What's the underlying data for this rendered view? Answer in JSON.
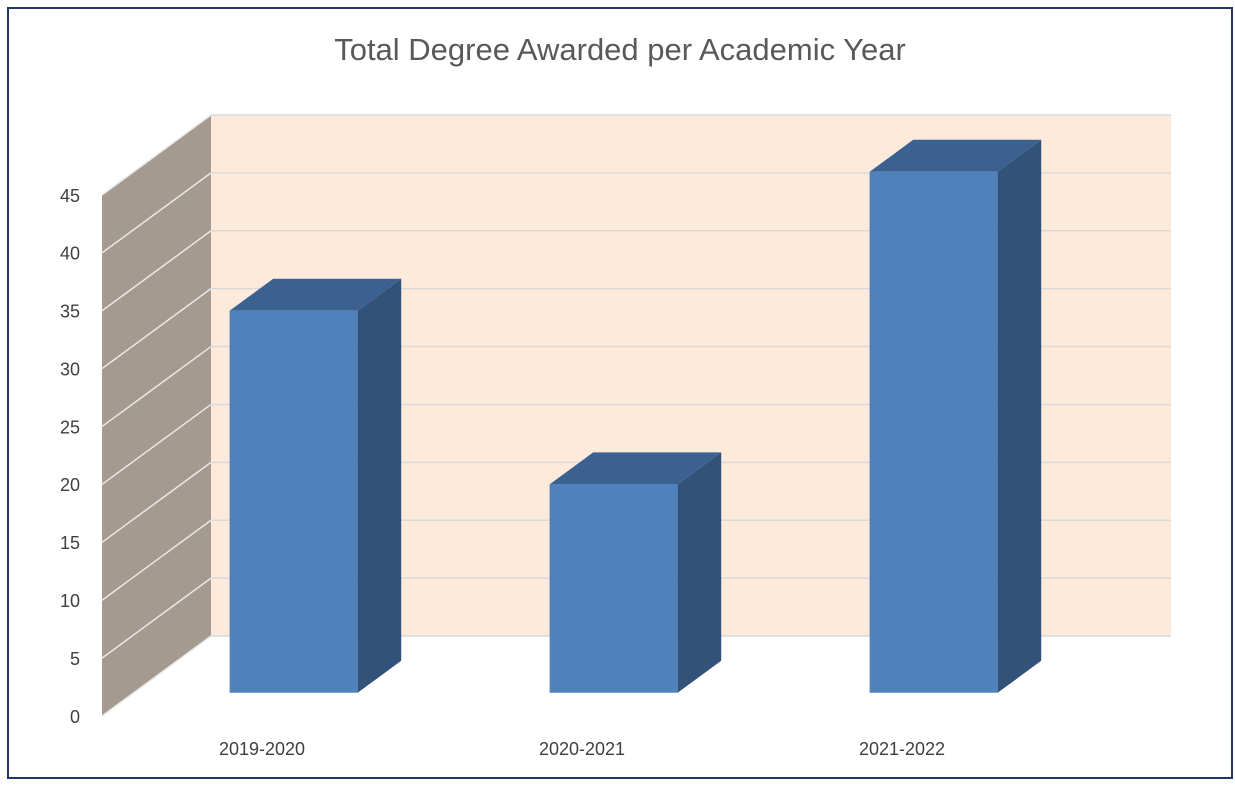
{
  "chart_data": {
    "type": "bar3d",
    "title": "Total Degree Awarded per Academic Year",
    "categories": [
      "2019-2020",
      "2020-2021",
      "2021-2022"
    ],
    "values": [
      33,
      18,
      45
    ],
    "color": "#4f81bd",
    "ylim": [
      0,
      45
    ],
    "yticks": [
      0,
      5,
      10,
      15,
      20,
      25,
      30,
      35,
      40,
      45
    ],
    "grid": true
  }
}
